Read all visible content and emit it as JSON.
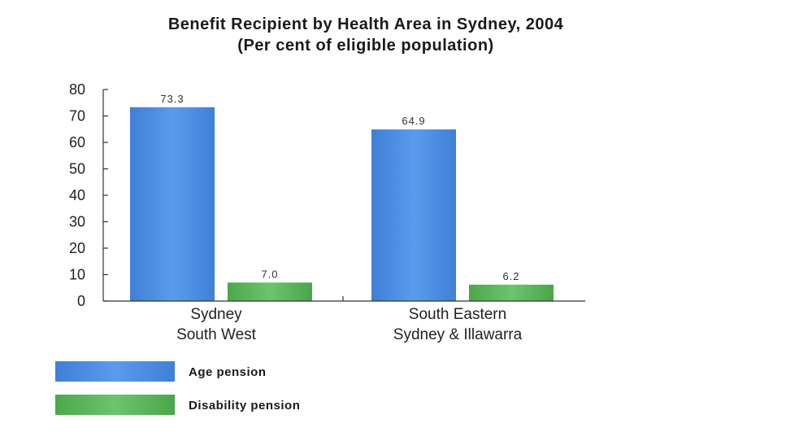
{
  "chart_data": {
    "type": "bar",
    "title": "Benefit Recipient by Health Area in Sydney, 2004",
    "subtitle": "(Per cent of eligible population)",
    "xlabel": "",
    "ylabel": "",
    "ylim": [
      0,
      80
    ],
    "yticks": [
      "0",
      "10",
      "20",
      "30",
      "40",
      "50",
      "60",
      "70",
      "80"
    ],
    "categories": [
      [
        "Sydney",
        "South West"
      ],
      [
        "South Eastern",
        "Sydney & Illawarra"
      ]
    ],
    "series": [
      {
        "name": "Age pension",
        "color": "#4a8fe0",
        "values": [
          73.3,
          64.9
        ],
        "labels": [
          "73.3",
          "64.9"
        ]
      },
      {
        "name": "Disability pension",
        "color": "#5cb85c",
        "values": [
          7.0,
          6.2
        ],
        "labels": [
          "7.0",
          "6.2"
        ]
      }
    ],
    "grid": false,
    "legend_position": "bottom-left"
  }
}
